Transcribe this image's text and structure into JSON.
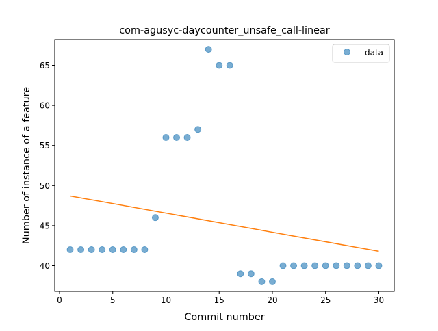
{
  "chart_data": {
    "type": "scatter",
    "title": "com-agusyc-daycounter_unsafe_call-linear",
    "xlabel": "Commit number",
    "ylabel": "Number of instance of a feature",
    "xlim": [
      -0.45,
      31.45
    ],
    "ylim": [
      36.8,
      68.2
    ],
    "xticks": [
      0,
      5,
      10,
      15,
      20,
      25,
      30
    ],
    "yticks": [
      40,
      45,
      50,
      55,
      60,
      65
    ],
    "grid": false,
    "legend": {
      "placement": "top-right",
      "entries": [
        "data"
      ]
    },
    "series": [
      {
        "name": "data",
        "kind": "scatter",
        "color": "#1f77b4",
        "x": [
          1,
          2,
          3,
          4,
          5,
          6,
          7,
          8,
          9,
          10,
          11,
          12,
          13,
          14,
          15,
          16,
          17,
          18,
          19,
          20,
          21,
          22,
          23,
          24,
          25,
          26,
          27,
          28,
          29,
          30
        ],
        "y": [
          42,
          42,
          42,
          42,
          42,
          42,
          42,
          42,
          46,
          56,
          56,
          56,
          57,
          67,
          65,
          65,
          39,
          39,
          38,
          38,
          40,
          40,
          40,
          40,
          40,
          40,
          40,
          40,
          40,
          40
        ]
      },
      {
        "kind": "line",
        "color": "#ff7f0e",
        "x": [
          1,
          30
        ],
        "y": [
          48.7,
          41.8
        ]
      }
    ]
  }
}
